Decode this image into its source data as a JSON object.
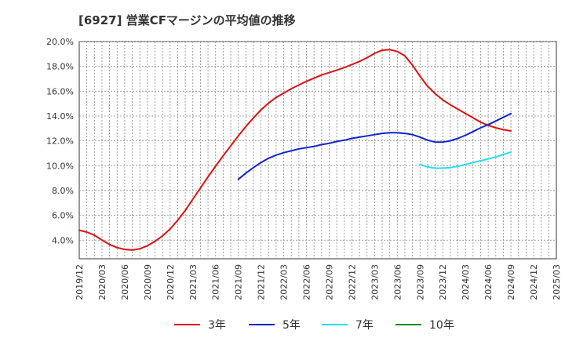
{
  "chart_data": {
    "type": "line",
    "title": "[6927]  営業CFマージンの平均値の推移",
    "xlabel": "",
    "ylabel": "",
    "ylim": [
      2.5,
      20.0
    ],
    "grid": true,
    "legend_position": "bottom",
    "y_ticks": [
      {
        "value": 4.0,
        "label": "4.0%"
      },
      {
        "value": 6.0,
        "label": "6.0%"
      },
      {
        "value": 8.0,
        "label": "8.0%"
      },
      {
        "value": 10.0,
        "label": "10.0%"
      },
      {
        "value": 12.0,
        "label": "12.0%"
      },
      {
        "value": 14.0,
        "label": "14.0%"
      },
      {
        "value": 16.0,
        "label": "16.0%"
      },
      {
        "value": 18.0,
        "label": "18.0%"
      },
      {
        "value": 20.0,
        "label": "20.0%"
      }
    ],
    "x_ticks": [
      "2019/12",
      "2020/03",
      "2020/06",
      "2020/09",
      "2020/12",
      "2021/03",
      "2021/06",
      "2021/09",
      "2021/12",
      "2022/03",
      "2022/06",
      "2022/09",
      "2022/12",
      "2023/03",
      "2023/06",
      "2023/09",
      "2023/12",
      "2024/03",
      "2024/06",
      "2024/09",
      "2024/12",
      "2025/03"
    ],
    "series": [
      {
        "name": "3年",
        "color": "#dd1111",
        "x": [
          "2019/12",
          "2020/01",
          "2020/02",
          "2020/03",
          "2020/04",
          "2020/05",
          "2020/06",
          "2020/07",
          "2020/08",
          "2020/09",
          "2020/10",
          "2020/11",
          "2020/12",
          "2021/01",
          "2021/02",
          "2021/03",
          "2021/04",
          "2021/05",
          "2021/06",
          "2021/07",
          "2021/08",
          "2021/09",
          "2021/10",
          "2021/11",
          "2021/12",
          "2022/01",
          "2022/02",
          "2022/03",
          "2022/04",
          "2022/05",
          "2022/06",
          "2022/07",
          "2022/08",
          "2022/09",
          "2022/10",
          "2022/11",
          "2022/12",
          "2023/01",
          "2023/02",
          "2023/03",
          "2023/04",
          "2023/05",
          "2023/06",
          "2023/07",
          "2023/08",
          "2023/09",
          "2023/10",
          "2023/11",
          "2023/12",
          "2024/01",
          "2024/02",
          "2024/03",
          "2024/04",
          "2024/05",
          "2024/06",
          "2024/07",
          "2024/08",
          "2024/09"
        ],
        "values": [
          4.8,
          4.65,
          4.4,
          4.0,
          3.65,
          3.4,
          3.25,
          3.2,
          3.3,
          3.55,
          3.9,
          4.35,
          4.9,
          5.6,
          6.4,
          7.3,
          8.2,
          9.1,
          9.95,
          10.8,
          11.6,
          12.4,
          13.15,
          13.85,
          14.5,
          15.05,
          15.5,
          15.85,
          16.2,
          16.5,
          16.8,
          17.05,
          17.3,
          17.5,
          17.7,
          17.9,
          18.15,
          18.4,
          18.7,
          19.05,
          19.3,
          19.35,
          19.2,
          18.85,
          18.1,
          17.2,
          16.4,
          15.8,
          15.3,
          14.9,
          14.55,
          14.2,
          13.85,
          13.5,
          13.25,
          13.05,
          12.9,
          12.8
        ]
      },
      {
        "name": "5年",
        "color": "#1122cc",
        "x": [
          "2021/09",
          "2021/10",
          "2021/11",
          "2021/12",
          "2022/01",
          "2022/02",
          "2022/03",
          "2022/04",
          "2022/05",
          "2022/06",
          "2022/07",
          "2022/08",
          "2022/09",
          "2022/10",
          "2022/11",
          "2022/12",
          "2023/01",
          "2023/02",
          "2023/03",
          "2023/04",
          "2023/05",
          "2023/06",
          "2023/07",
          "2023/08",
          "2023/09",
          "2023/10",
          "2023/11",
          "2023/12",
          "2024/01",
          "2024/02",
          "2024/03",
          "2024/04",
          "2024/05",
          "2024/06",
          "2024/07",
          "2024/08",
          "2024/09"
        ],
        "values": [
          8.9,
          9.4,
          9.85,
          10.25,
          10.6,
          10.85,
          11.05,
          11.2,
          11.35,
          11.45,
          11.55,
          11.7,
          11.8,
          11.95,
          12.05,
          12.2,
          12.3,
          12.4,
          12.5,
          12.6,
          12.65,
          12.65,
          12.6,
          12.5,
          12.3,
          12.05,
          11.9,
          11.9,
          12.0,
          12.2,
          12.45,
          12.75,
          13.05,
          13.3,
          13.6,
          13.9,
          14.2
        ]
      },
      {
        "name": "7年",
        "color": "#22e0ee",
        "x": [
          "2023/09",
          "2023/10",
          "2023/11",
          "2023/12",
          "2024/01",
          "2024/02",
          "2024/03",
          "2024/04",
          "2024/05",
          "2024/06",
          "2024/07",
          "2024/08",
          "2024/09"
        ],
        "values": [
          10.1,
          9.9,
          9.8,
          9.8,
          9.85,
          9.95,
          10.1,
          10.25,
          10.4,
          10.55,
          10.7,
          10.9,
          11.1
        ]
      },
      {
        "name": "10年",
        "color": "#228822",
        "x": [],
        "values": []
      }
    ]
  }
}
